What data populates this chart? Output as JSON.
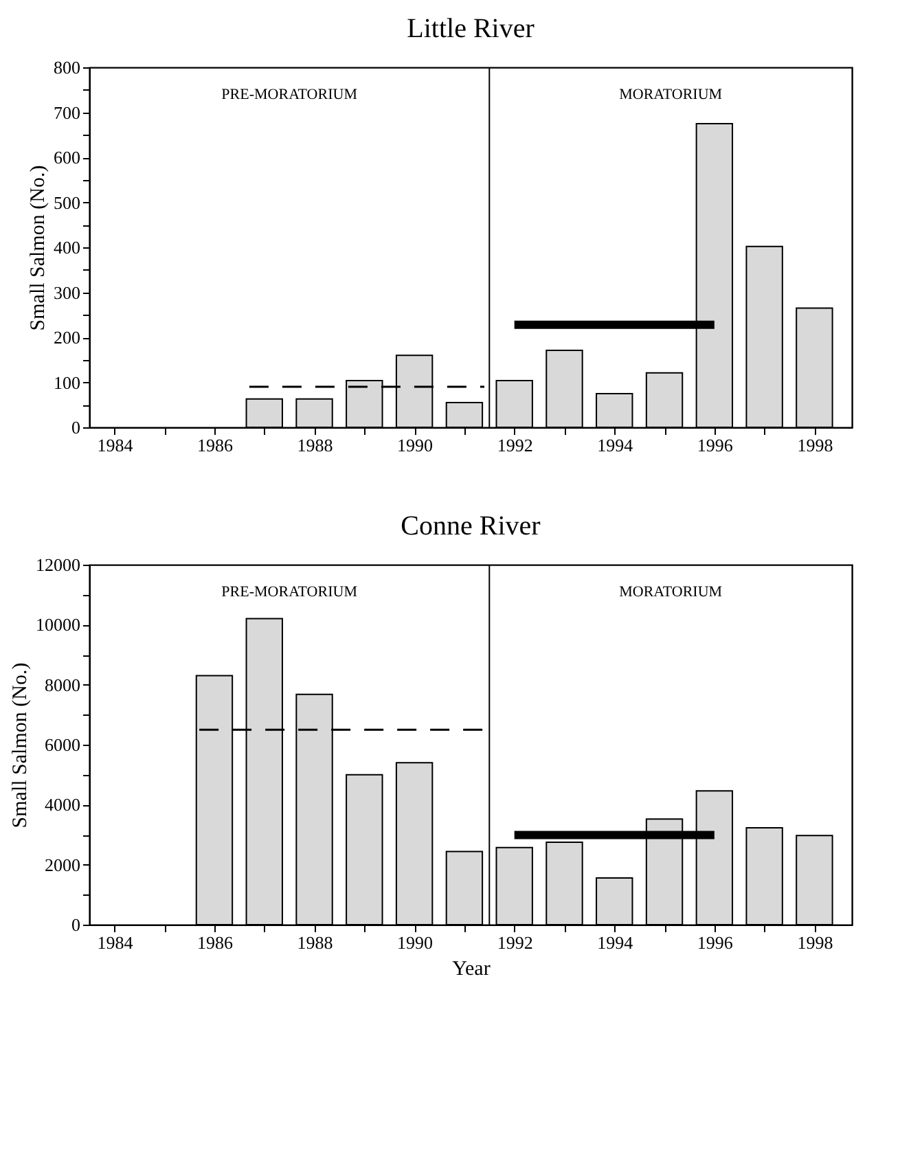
{
  "chart_data": [
    {
      "type": "bar",
      "title": "Little River",
      "ylabel": "Small Salmon (No.)",
      "series": [
        {
          "color": "#d9d9d9",
          "x": [
            1987,
            1988,
            1989,
            1990,
            1991,
            1992,
            1993,
            1994,
            1995,
            1996,
            1997,
            1998
          ],
          "values": [
            63,
            63,
            104,
            160,
            55,
            104,
            171,
            75,
            121,
            675,
            402,
            265
          ]
        },
        {
          "type": "line",
          "color": "#000000",
          "line_style": "dashed",
          "x": [
            1986.7,
            1991.4
          ],
          "values": [
            90,
            90
          ]
        },
        {
          "type": "line",
          "color": "#000000",
          "line_style": "solid",
          "x": [
            1992,
            1996
          ],
          "values": [
            228,
            228
          ]
        }
      ],
      "xlim": [
        1983.5,
        1998.75
      ],
      "xticks": [
        1984,
        {
          "value": 1985,
          "label": null
        },
        1986,
        {
          "value": 1987,
          "label": null
        },
        1988,
        {
          "value": 1989,
          "label": null
        },
        1990,
        {
          "value": 1991,
          "label": null
        },
        1992,
        {
          "value": 1993,
          "label": null
        },
        1994,
        {
          "value": 1995,
          "label": null
        },
        1996,
        {
          "value": 1997,
          "label": null
        },
        1998
      ],
      "ylim": [
        0,
        800
      ],
      "yticks": [
        0,
        {
          "value": 50,
          "label": null
        },
        100,
        {
          "value": 150,
          "label": null
        },
        200,
        {
          "value": 250,
          "label": null
        },
        300,
        {
          "value": 350,
          "label": null
        },
        400,
        {
          "value": 450,
          "label": null
        },
        500,
        {
          "value": 550,
          "label": null
        },
        600,
        {
          "value": 650,
          "label": null
        },
        700,
        {
          "value": 750,
          "label": null
        },
        800
      ],
      "ref_lines": [
        {
          "axis": "x",
          "value": 1991.5,
          "color": "#000000"
        }
      ],
      "annotations": [
        "PRE-MORATORIUM",
        "MORATORIUM"
      ],
      "grid": false
    },
    {
      "type": "bar",
      "title": "Conne River",
      "xlabel": "Year",
      "ylabel": "Small Salmon (No.)",
      "series": [
        {
          "color": "#d9d9d9",
          "x": [
            1986,
            1987,
            1988,
            1989,
            1990,
            1991,
            1992,
            1993,
            1994,
            1995,
            1996,
            1997,
            1998
          ],
          "values": [
            8300,
            10200,
            7680,
            5000,
            5400,
            2440,
            2570,
            2750,
            1560,
            3520,
            4460,
            3230,
            2970
          ]
        },
        {
          "type": "line",
          "color": "#000000",
          "line_style": "dashed",
          "x": [
            1985.7,
            1991.4
          ],
          "values": [
            6500,
            6500
          ]
        },
        {
          "type": "line",
          "color": "#000000",
          "line_style": "solid",
          "x": [
            1992,
            1996
          ],
          "values": [
            2990,
            2990
          ]
        }
      ],
      "xlim": [
        1983.5,
        1998.75
      ],
      "xticks": [
        1984,
        {
          "value": 1985,
          "label": null
        },
        1986,
        {
          "value": 1987,
          "label": null
        },
        1988,
        {
          "value": 1989,
          "label": null
        },
        1990,
        {
          "value": 1991,
          "label": null
        },
        1992,
        {
          "value": 1993,
          "label": null
        },
        1994,
        {
          "value": 1995,
          "label": null
        },
        1996,
        {
          "value": 1997,
          "label": null
        },
        1998
      ],
      "ylim": [
        0,
        12000
      ],
      "yticks": [
        0,
        {
          "value": 1000,
          "label": null
        },
        2000,
        {
          "value": 3000,
          "label": null
        },
        4000,
        {
          "value": 5000,
          "label": null
        },
        6000,
        {
          "value": 7000,
          "label": null
        },
        8000,
        {
          "value": 9000,
          "label": null
        },
        10000,
        {
          "value": 11000,
          "label": null
        },
        12000
      ],
      "ref_lines": [
        {
          "axis": "x",
          "value": 1991.5,
          "color": "#000000"
        }
      ],
      "annotations": [
        "PRE-MORATORIUM",
        "MORATORIUM"
      ],
      "grid": false
    }
  ]
}
